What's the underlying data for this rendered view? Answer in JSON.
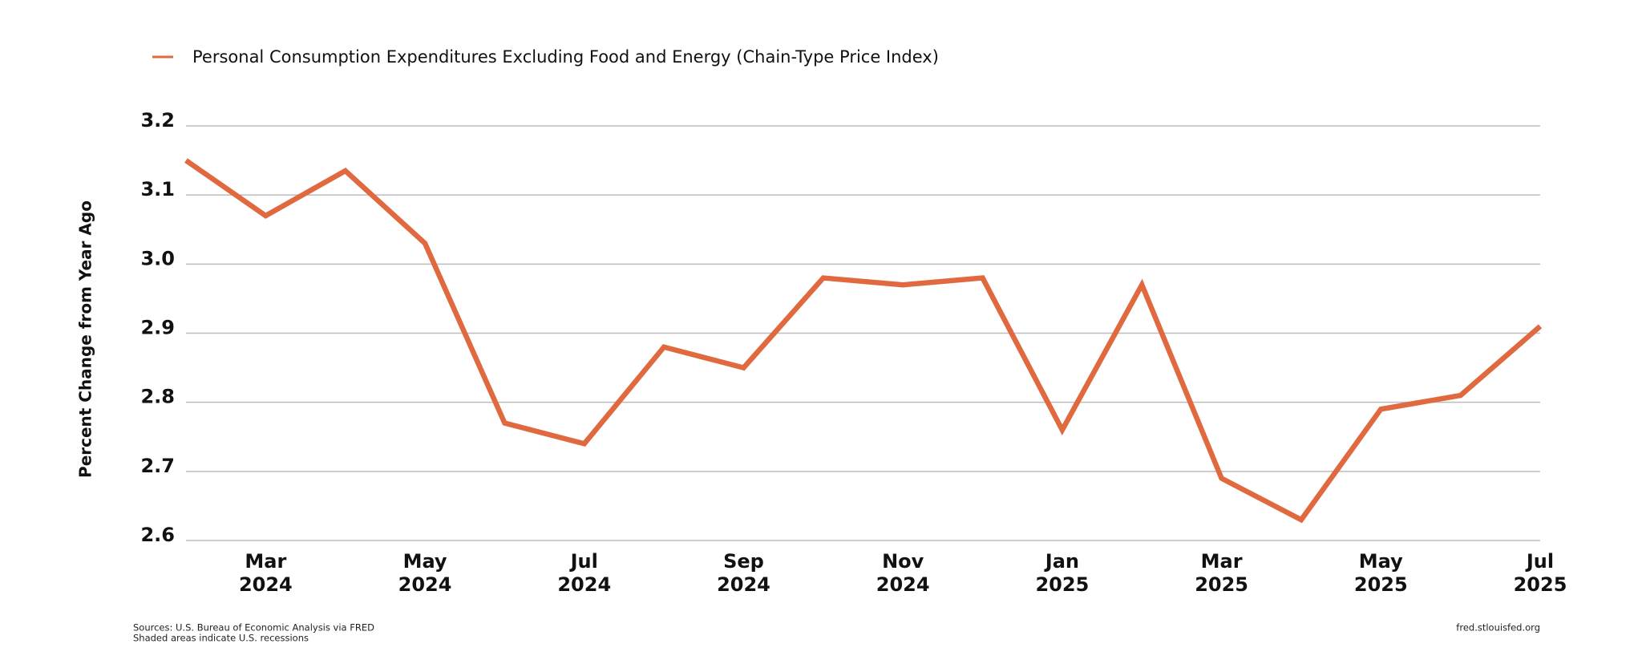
{
  "chart_data": {
    "type": "line",
    "y_axis_label": "Percent Change from Year Ago",
    "categories": [
      null,
      "Mar 2024",
      null,
      "May 2024",
      null,
      "Jul 2024",
      null,
      "Sep 2024",
      null,
      "Nov 2024",
      null,
      "Jan 2025",
      null,
      "Mar 2025",
      null,
      "May 2025",
      null,
      "Jul 2025"
    ],
    "series": [
      {
        "name": "Personal Consumption Expenditures Excluding Food and Energy (Chain-Type Price Index)",
        "color": "#e0693f",
        "values": [
          3.15,
          3.07,
          3.135,
          3.03,
          2.77,
          2.74,
          2.88,
          2.85,
          2.98,
          2.97,
          2.98,
          2.76,
          2.97,
          2.69,
          2.63,
          2.79,
          2.81,
          2.91
        ]
      }
    ],
    "ylim": [
      2.6,
      3.2
    ],
    "yticks": [
      2.6,
      2.7,
      2.8,
      2.9,
      {
        "value": 3,
        "label": "3.0"
      },
      3.1,
      3.2
    ],
    "grid": true,
    "legend": "top-left",
    "source": "Sources: U.S. Bureau of Economic Analysis via FRED",
    "note": "Shaded areas indicate U.S. recessions",
    "credit": "fred.stlouisfed.org"
  }
}
